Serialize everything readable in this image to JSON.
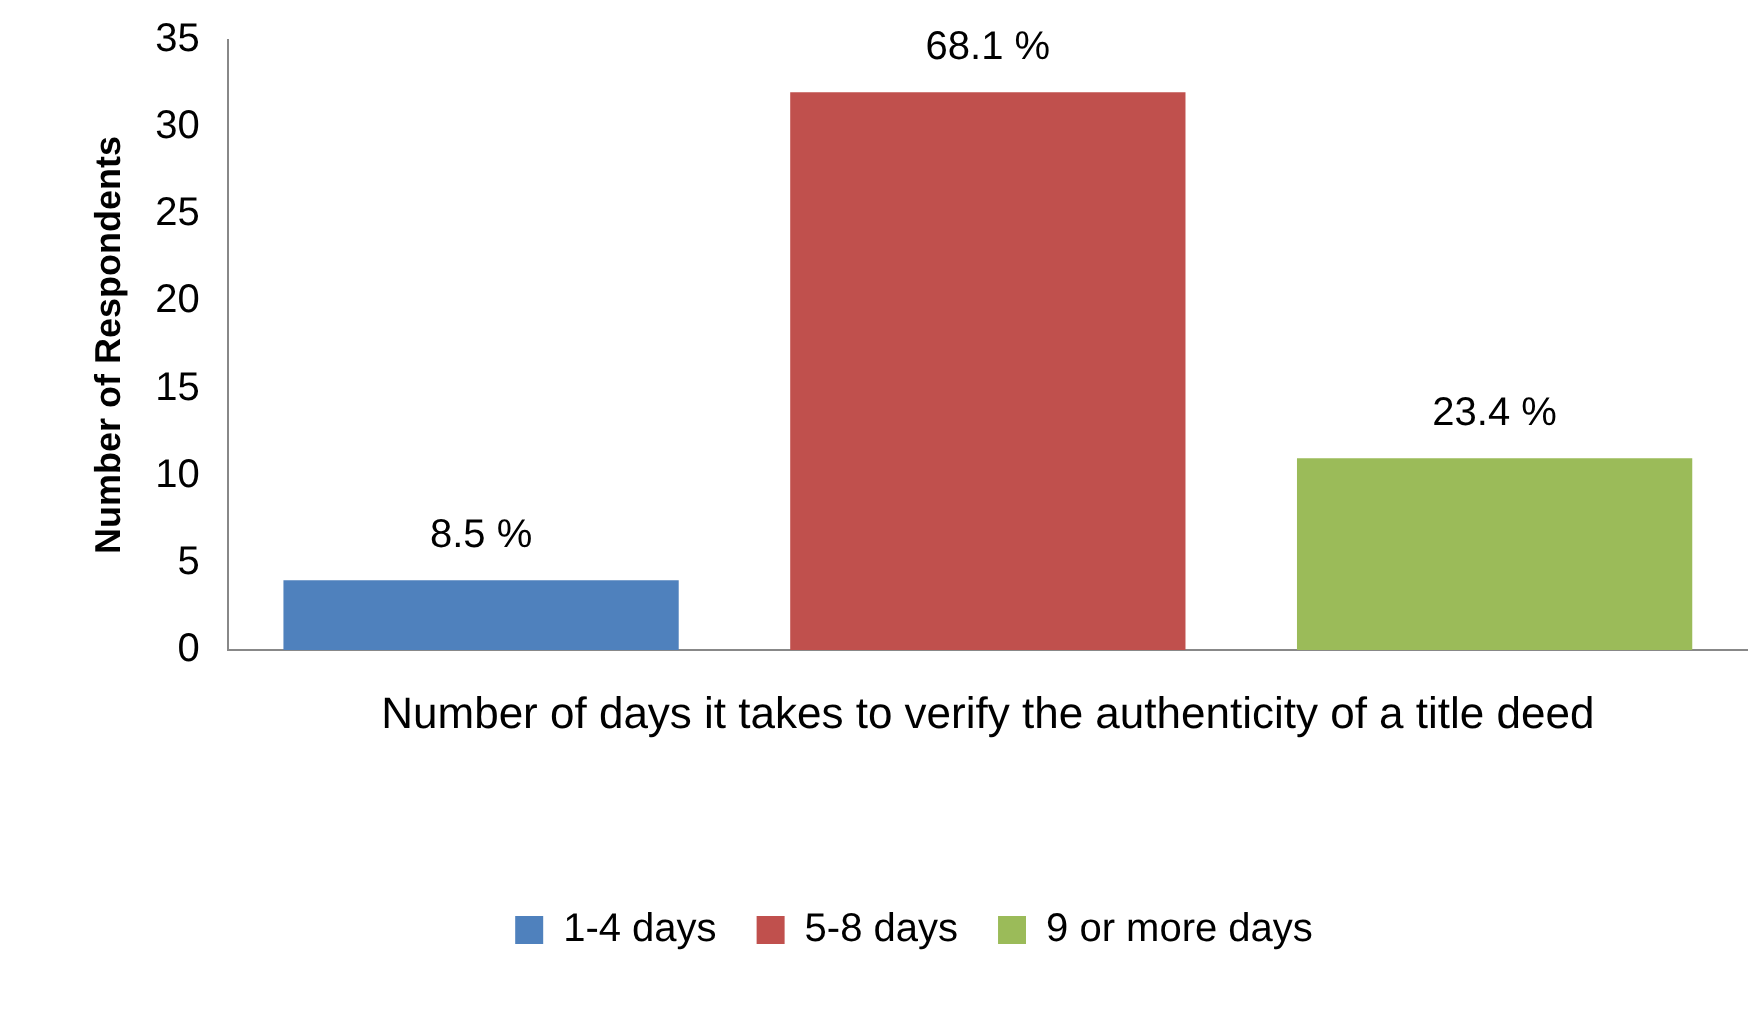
{
  "chart_data": {
    "type": "bar",
    "categories": [
      null
    ],
    "series": [
      {
        "name": "1-4 days",
        "color": "#4f81bd",
        "values": [
          4
        ]
      },
      {
        "name": "5-8 days",
        "color": "#c0504d",
        "values": [
          32
        ]
      },
      {
        "name": "9 or more days",
        "color": "#9bbb59",
        "values": [
          11
        ]
      }
    ],
    "annotations": [
      {
        "text": "8.5 %",
        "y": 4
      },
      {
        "text": "68.1 %",
        "y": 32
      },
      {
        "text": "23.4 %",
        "y": 11
      }
    ],
    "xlabel": "Number of days it takes to verify the authenticity of a title deed",
    "ylabel": "Number of Respondents",
    "ylim": [
      0,
      35
    ],
    "yticks": [
      0,
      5,
      10,
      15,
      20,
      25,
      30,
      35
    ],
    "grid": false,
    "legend": "bottom"
  }
}
